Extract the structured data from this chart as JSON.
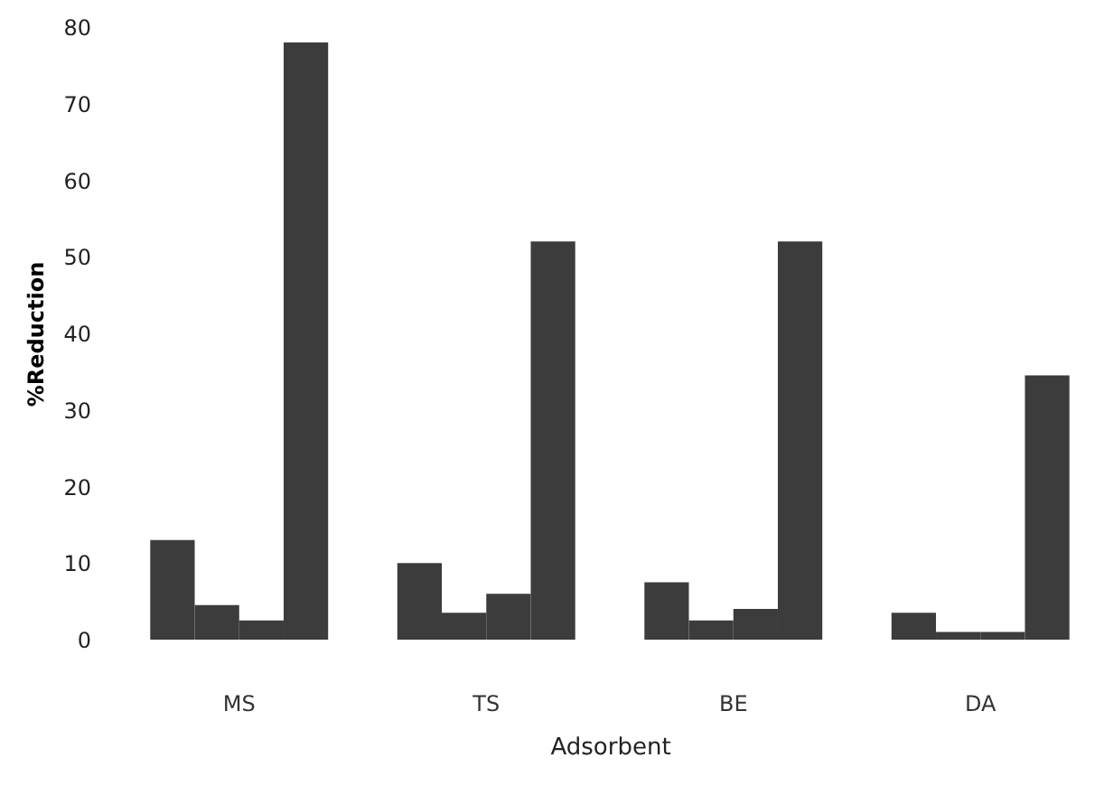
{
  "chart_data": {
    "type": "bar",
    "xlabel": "Adsorbent",
    "ylabel": "%Reduction",
    "categories": [
      "MS",
      "TS",
      "BE",
      "DA"
    ],
    "series": [
      {
        "color": "#3c3c3c",
        "values": [
          13,
          10,
          7.5,
          3.5
        ]
      },
      {
        "color": "#3c3c3c",
        "values": [
          4.5,
          3.5,
          2.5,
          1
        ]
      },
      {
        "color": "#3c3c3c",
        "values": [
          2.5,
          6,
          4,
          1
        ]
      },
      {
        "color": "#3c3c3c",
        "values": [
          78,
          52,
          52,
          34.5
        ]
      }
    ],
    "ylim": [
      0,
      80
    ],
    "yticks": [
      0,
      10,
      20,
      30,
      40,
      50,
      60,
      70,
      80
    ],
    "grid": false
  }
}
